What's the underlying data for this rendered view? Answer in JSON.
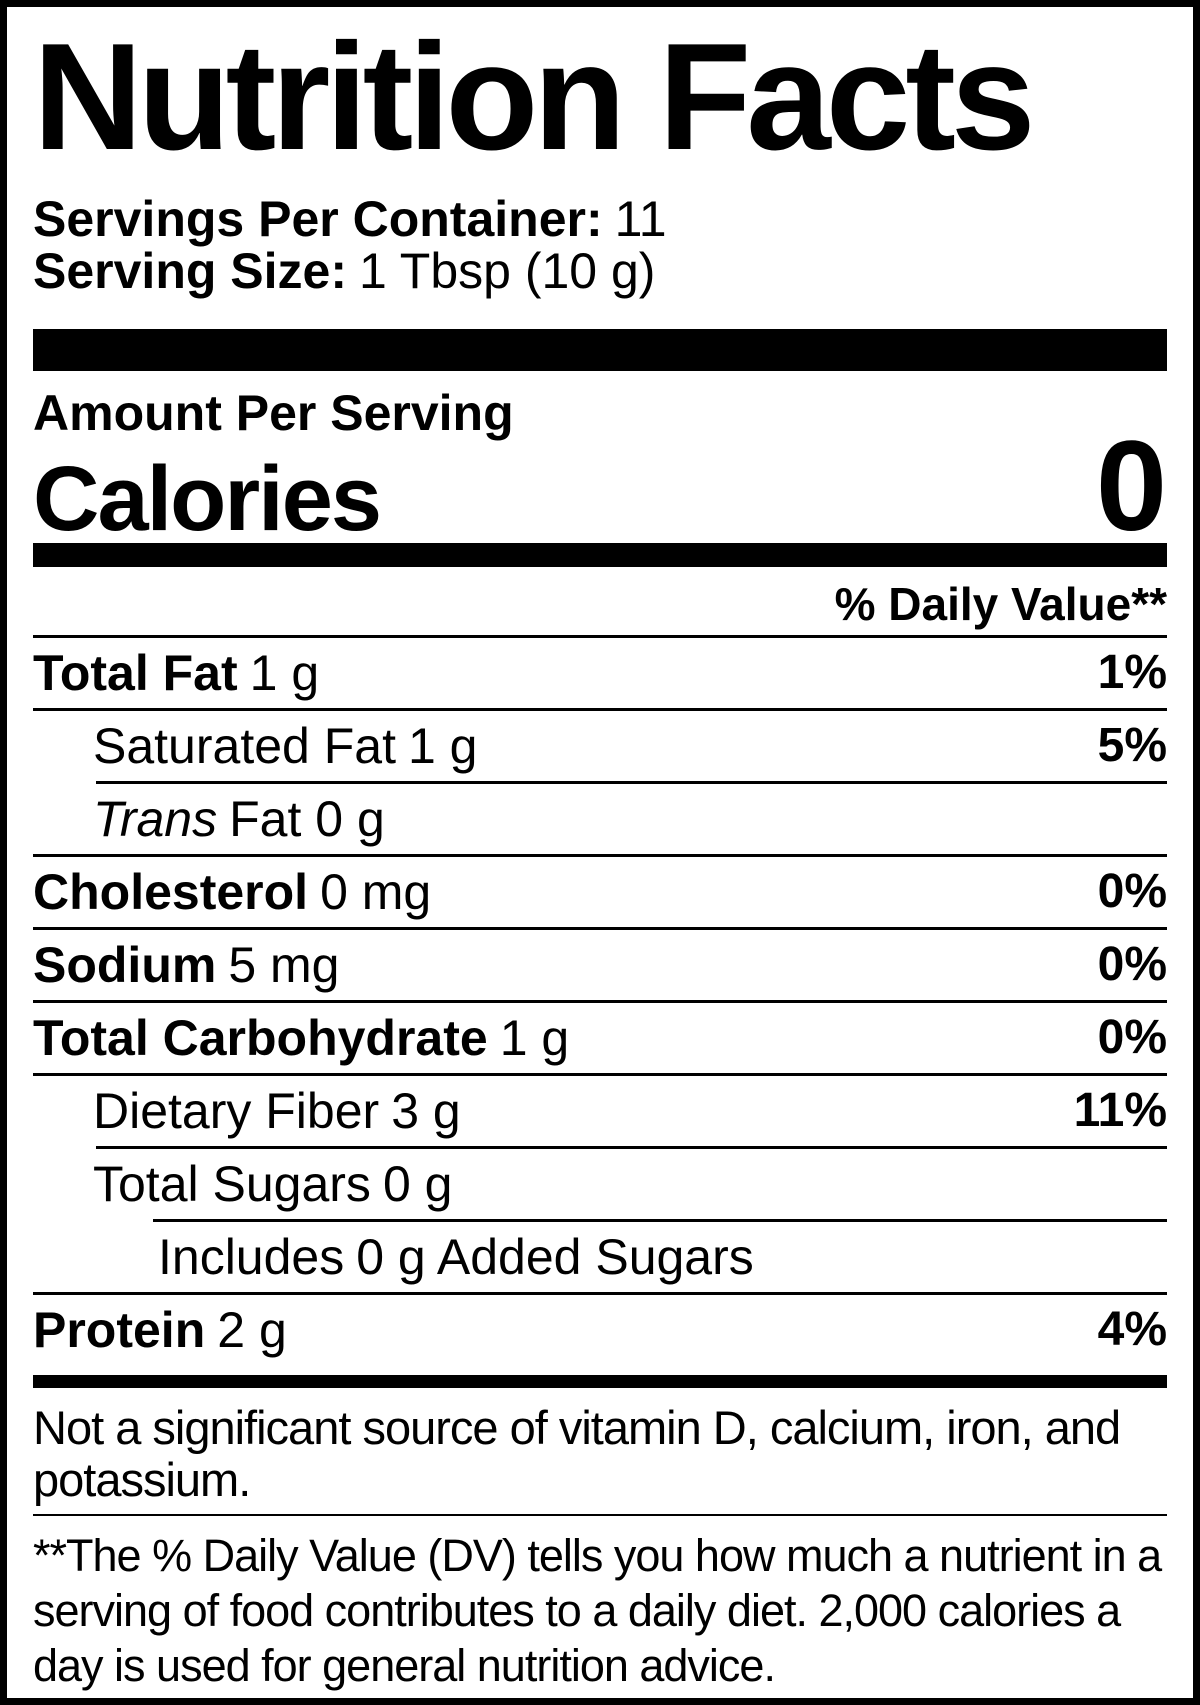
{
  "colors": {
    "ink": "#000000",
    "bg": "#ffffff"
  },
  "title": "Nutrition Facts",
  "servings_per_container": {
    "label": "Servings Per Container:",
    "value": "11"
  },
  "serving_size": {
    "label": "Serving Size:",
    "value": "1 Tbsp (10 g)"
  },
  "amount_per_serving": "Amount Per Serving",
  "calories": {
    "label": "Calories",
    "value": "0"
  },
  "daily_value_header": "% Daily Value**",
  "rows": [
    {
      "name": "Total Fat",
      "amount": "1 g",
      "percent": "1%"
    },
    {
      "name": "Saturated Fat",
      "amount": "1 g",
      "percent": "5%"
    },
    {
      "name": "Trans",
      "amount": "Fat 0 g",
      "percent": ""
    },
    {
      "name": "Cholesterol",
      "amount": "0 mg",
      "percent": "0%"
    },
    {
      "name": "Sodium",
      "amount": "5 mg",
      "percent": "0%"
    },
    {
      "name": "Total Carbohydrate",
      "amount": "1 g",
      "percent": "0%"
    },
    {
      "name": "Dietary Fiber",
      "amount": "3 g",
      "percent": "11%"
    },
    {
      "name": "Total Sugars",
      "amount": "0 g",
      "percent": ""
    },
    {
      "name": "Includes",
      "amount": "0 g Added Sugars",
      "percent": ""
    },
    {
      "name": "Protein",
      "amount": "2 g",
      "percent": "4%"
    }
  ],
  "footnotes": {
    "not_significant": "Not a significant source of vitamin D, calcium, iron, and potassium.",
    "daily_value": "**The % Daily Value (DV) tells you how much a nutrient in a serving of food contributes to a daily diet. 2,000 calories a day is used for general nutrition advice."
  }
}
